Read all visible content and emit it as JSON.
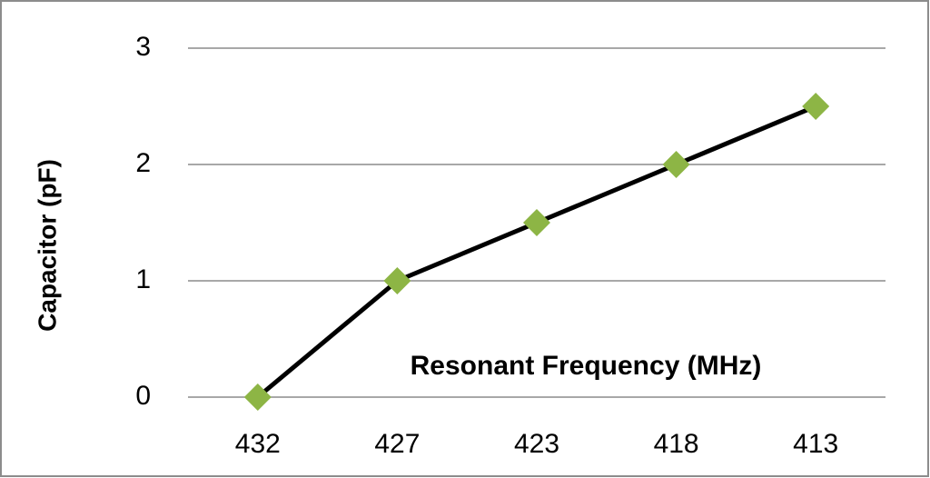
{
  "chart_data": {
    "type": "line",
    "x_label": "Resonant Frequency (MHz)",
    "y_label": "Capacitor (pF)",
    "categories": [
      "432",
      "427",
      "423",
      "418",
      "413"
    ],
    "series": [
      {
        "name": "Capacitor",
        "color": "#000000",
        "marker_color": "#8db545",
        "values": [
          0,
          1,
          1.5,
          2,
          2.5
        ]
      }
    ],
    "ylim": [
      0,
      3
    ],
    "yticks": [
      0,
      1,
      2,
      3
    ],
    "grid": true
  }
}
